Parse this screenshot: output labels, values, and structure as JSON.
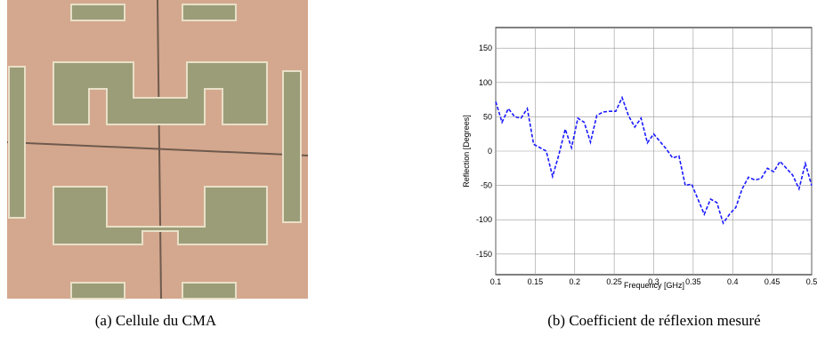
{
  "chart_data": {
    "type": "line",
    "xlabel": "Frequency [GHz]",
    "ylabel": "Reflection [Degrees]",
    "x": [
      0.1,
      0.108,
      0.116,
      0.124,
      0.132,
      0.14,
      0.148,
      0.156,
      0.164,
      0.172,
      0.18,
      0.188,
      0.196,
      0.204,
      0.212,
      0.22,
      0.228,
      0.236,
      0.244,
      0.252,
      0.26,
      0.268,
      0.276,
      0.284,
      0.292,
      0.3,
      0.308,
      0.316,
      0.324,
      0.332,
      0.34,
      0.348,
      0.356,
      0.364,
      0.372,
      0.38,
      0.388,
      0.396,
      0.404,
      0.412,
      0.42,
      0.428,
      0.436,
      0.444,
      0.452,
      0.46,
      0.468,
      0.476,
      0.484,
      0.492,
      0.5
    ],
    "values": [
      72,
      42,
      62,
      50,
      48,
      62,
      10,
      5,
      0,
      -37,
      -5,
      32,
      5,
      48,
      42,
      13,
      52,
      57,
      58,
      58,
      78,
      52,
      35,
      48,
      12,
      25,
      14,
      3,
      -10,
      -7,
      -50,
      -48,
      -70,
      -92,
      -70,
      -75,
      -105,
      -92,
      -82,
      -55,
      -38,
      -42,
      -40,
      -25,
      -30,
      -15,
      -25,
      -35,
      -55,
      -18,
      -50
    ],
    "color": "#1a1aff",
    "line_style": "dashed",
    "xlim": [
      0.1,
      0.5
    ],
    "xticks": [
      0.1,
      0.15,
      0.2,
      0.25,
      0.3,
      0.35,
      0.4,
      0.45,
      0.5
    ],
    "ylim": [
      -180,
      180
    ],
    "yticks": [
      -150,
      -100,
      -50,
      0,
      50,
      100,
      150
    ],
    "grid": true
  },
  "captions": {
    "a": "(a) Cellule du CMA",
    "b": "(b) Coefficient de réflexion mesuré"
  }
}
